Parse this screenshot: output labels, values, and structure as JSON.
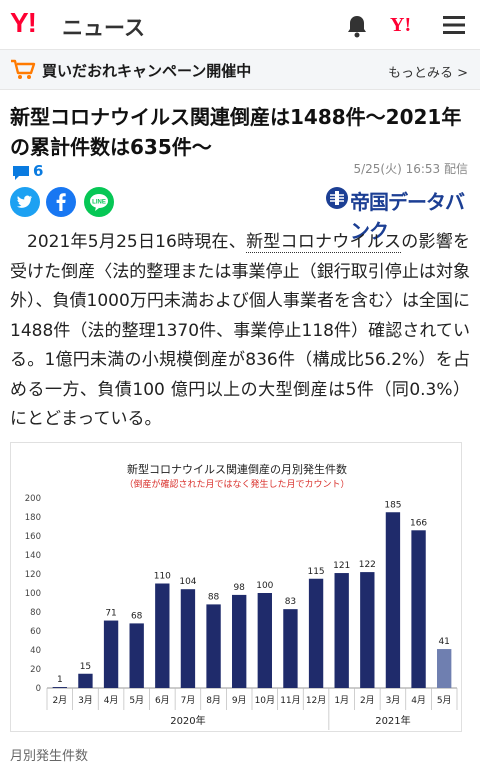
{
  "header": {
    "logo": "Y!",
    "service": "ニュース",
    "yj_icon": "Y!"
  },
  "campaign": {
    "text": "買いだおれキャンペーン開催中",
    "more_link": "もっとみる >"
  },
  "article": {
    "title_line1": "新型コロナウイルス関連倒産は1488件〜2021年",
    "title_line2": "の累計件数は635件〜",
    "comment_count": "6",
    "date": "5/25(火) 16:53 配信",
    "publisher": "帝国データバンク",
    "body_part1": "2021年5月25日16時現在、",
    "body_link": "新型コロナウイルス",
    "body_part2": "の影響を受けた倒産〈法的整理または事業停止（銀行取引停止は対象外）、負債1000万円未満および個人事業者を含む〉は全国に1488件（法的整理1370件、事業停止118件）確認されている。1億円未満の小規模倒産が836件（構成比56.2%）を占める一方、負債100 億円以上の大型倒産は5件（同0.3%）にとどまっている。"
  },
  "chart_data": {
    "type": "bar",
    "title": "新型コロナウイルス関連倒産の月別発生件数",
    "subtitle": "（倒産が確認された月ではなく発生した月でカウント）",
    "categories": [
      "2月",
      "3月",
      "4月",
      "5月",
      "6月",
      "7月",
      "8月",
      "9月",
      "10月",
      "11月",
      "12月",
      "1月",
      "2月",
      "3月",
      "4月",
      "5月"
    ],
    "values": [
      1,
      15,
      71,
      68,
      110,
      104,
      88,
      98,
      100,
      83,
      115,
      121,
      122,
      185,
      166,
      41
    ],
    "year_labels": [
      "2020年",
      "2021年"
    ],
    "ylim": [
      0,
      200
    ],
    "yticks": [
      0,
      20,
      40,
      60,
      80,
      100,
      120,
      140,
      160,
      180,
      200
    ],
    "colors": {
      "bar": "#1f2b6b",
      "last_bar": "#6f7fb0"
    },
    "grid": false
  },
  "caption": "月別発生件数",
  "colors": {
    "accent": "#ff0033",
    "link": "#0a7be0"
  }
}
